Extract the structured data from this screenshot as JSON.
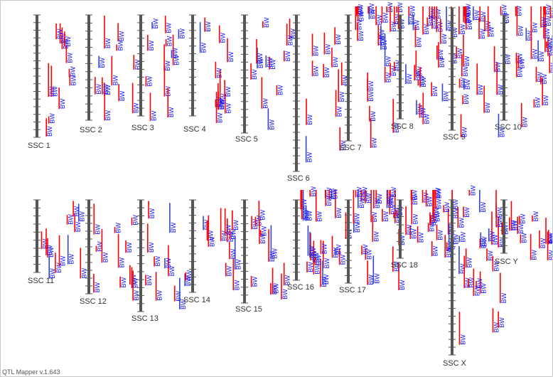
{
  "app": {
    "version_label": "QTL Mapper v.1.643"
  },
  "colors": {
    "chromosome": "#555555",
    "tick": "#555555",
    "qtl_bar": "#ff0000",
    "qtl_bar_alt": "#3344cc",
    "qtl_label": "#1010ff"
  },
  "qtl_trait_label": "BW",
  "chromosomes": [
    {
      "id": "SSC 1",
      "row": 1
    },
    {
      "id": "SSC 2",
      "row": 1
    },
    {
      "id": "SSC 3",
      "row": 1
    },
    {
      "id": "SSC 4",
      "row": 1
    },
    {
      "id": "SSC 5",
      "row": 1
    },
    {
      "id": "SSC 6",
      "row": 1
    },
    {
      "id": "SSC 7",
      "row": 1
    },
    {
      "id": "SSC 8",
      "row": 1
    },
    {
      "id": "SSC 9",
      "row": 1
    },
    {
      "id": "SSC 10",
      "row": 1
    },
    {
      "id": "SSC 11",
      "row": 2
    },
    {
      "id": "SSC 12",
      "row": 2
    },
    {
      "id": "SSC 13",
      "row": 2
    },
    {
      "id": "SSC 14",
      "row": 2
    },
    {
      "id": "SSC 15",
      "row": 2
    },
    {
      "id": "SSC 16",
      "row": 2
    },
    {
      "id": "SSC 17",
      "row": 2
    },
    {
      "id": "SSC 18",
      "row": 2
    },
    {
      "id": "SSC X",
      "row": 2
    },
    {
      "id": "SSC Y",
      "row": 2
    }
  ]
}
